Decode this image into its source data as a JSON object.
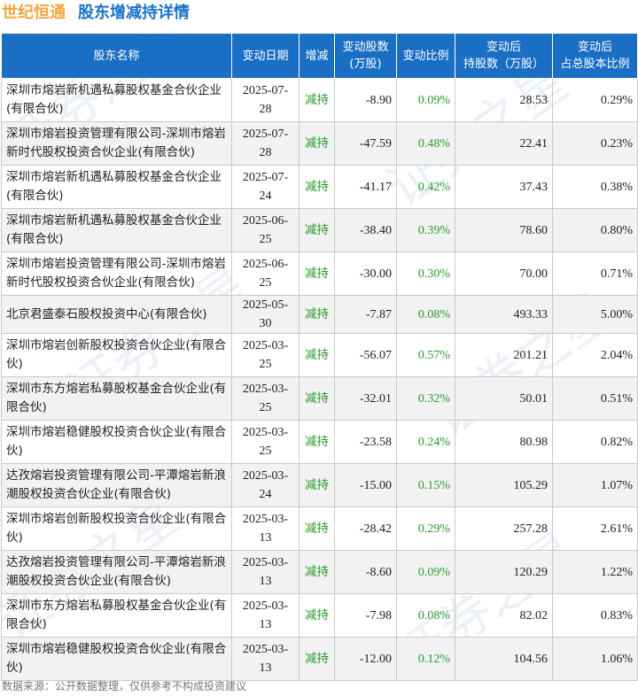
{
  "header": {
    "company": "世纪恒通",
    "subject": "股东增减持详情"
  },
  "table": {
    "columns": [
      "股东名称",
      "变动日期",
      "增减",
      "变动股数\n(万股)",
      "变动比例",
      "变动后\n持股数（万股）",
      "变动后\n占总股本比例"
    ],
    "rows": [
      {
        "name": "深圳市熔岩新机遇私募股权基金合伙企业(有限合伙)",
        "date": "2025-07-28",
        "dir": "减持",
        "shares": "-8.90",
        "ratio": "0.09%",
        "after": "28.53",
        "pct": "0.29%"
      },
      {
        "name": "深圳市熔岩投资管理有限公司-深圳市熔岩新时代股权投资合伙企业(有限合伙)",
        "date": "2025-07-28",
        "dir": "减持",
        "shares": "-47.59",
        "ratio": "0.48%",
        "after": "22.41",
        "pct": "0.23%"
      },
      {
        "name": "深圳市熔岩新机遇私募股权基金合伙企业(有限合伙)",
        "date": "2025-07-24",
        "dir": "减持",
        "shares": "-41.17",
        "ratio": "0.42%",
        "after": "37.43",
        "pct": "0.38%"
      },
      {
        "name": "深圳市熔岩新机遇私募股权基金合伙企业(有限合伙)",
        "date": "2025-06-25",
        "dir": "减持",
        "shares": "-38.40",
        "ratio": "0.39%",
        "after": "78.60",
        "pct": "0.80%"
      },
      {
        "name": "深圳市熔岩投资管理有限公司-深圳市熔岩新时代股权投资合伙企业(有限合伙)",
        "date": "2025-06-25",
        "dir": "减持",
        "shares": "-30.00",
        "ratio": "0.30%",
        "after": "70.00",
        "pct": "0.71%"
      },
      {
        "name": "北京君盛泰石股权投资中心(有限合伙)",
        "date": "2025-05-30",
        "dir": "减持",
        "shares": "-7.87",
        "ratio": "0.08%",
        "after": "493.33",
        "pct": "5.00%"
      },
      {
        "name": "深圳市熔岩创新股权投资合伙企业(有限合伙)",
        "date": "2025-03-25",
        "dir": "减持",
        "shares": "-56.07",
        "ratio": "0.57%",
        "after": "201.21",
        "pct": "2.04%"
      },
      {
        "name": "深圳市东方熔岩私募股权基金合伙企业(有限合伙)",
        "date": "2025-03-25",
        "dir": "减持",
        "shares": "-32.01",
        "ratio": "0.32%",
        "after": "50.01",
        "pct": "0.51%"
      },
      {
        "name": "深圳市熔岩稳健股权投资合伙企业(有限合伙)",
        "date": "2025-03-25",
        "dir": "减持",
        "shares": "-23.58",
        "ratio": "0.24%",
        "after": "80.98",
        "pct": "0.82%"
      },
      {
        "name": "达孜熔岩投资管理有限公司-平潭熔岩新浪潮股权投资合伙企业(有限合伙)",
        "date": "2025-03-24",
        "dir": "减持",
        "shares": "-15.00",
        "ratio": "0.15%",
        "after": "105.29",
        "pct": "1.07%"
      },
      {
        "name": "深圳市熔岩创新股权投资合伙企业(有限合伙)",
        "date": "2025-03-13",
        "dir": "减持",
        "shares": "-28.42",
        "ratio": "0.29%",
        "after": "257.28",
        "pct": "2.61%"
      },
      {
        "name": "达孜熔岩投资管理有限公司-平潭熔岩新浪潮股权投资合伙企业(有限合伙)",
        "date": "2025-03-13",
        "dir": "减持",
        "shares": "-8.60",
        "ratio": "0.09%",
        "after": "120.29",
        "pct": "1.22%"
      },
      {
        "name": "深圳市东方熔岩私募股权基金合伙企业(有限合伙)",
        "date": "2025-03-13",
        "dir": "减持",
        "shares": "-7.98",
        "ratio": "0.08%",
        "after": "82.02",
        "pct": "0.83%"
      },
      {
        "name": "深圳市熔岩稳健股权投资合伙企业(有限合伙)",
        "date": "2025-03-13",
        "dir": "减持",
        "shares": "-12.00",
        "ratio": "0.12%",
        "after": "104.56",
        "pct": "1.06%"
      }
    ]
  },
  "footer": "数据来源：公开数据整理，仅供参考不构成投资建议",
  "watermark": [
    "证券之星",
    "证券之星",
    "证券之星",
    "证券之星",
    "证券之星",
    "证券之星"
  ],
  "colors": {
    "header_bg": "#1a6fc4",
    "company": "#f0a640",
    "subject": "#1a73c9",
    "decrease": "#2a9a2a"
  }
}
